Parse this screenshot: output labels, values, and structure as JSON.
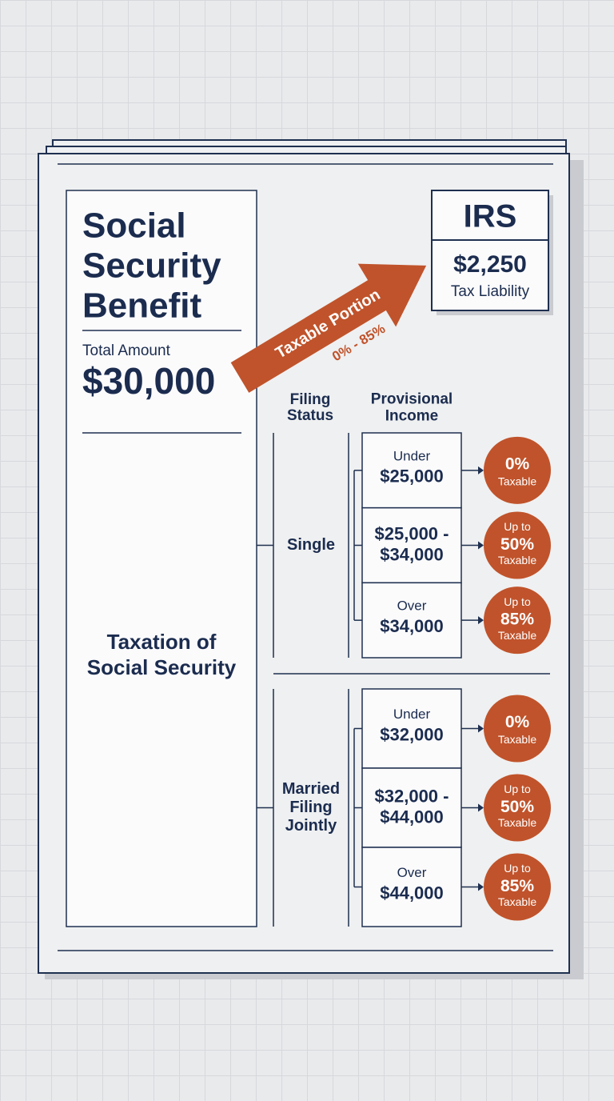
{
  "benefit": {
    "title_lines": [
      "Social",
      "Security",
      "Benefit"
    ],
    "total_label": "Total Amount",
    "total": "$30,000",
    "footer_lines": [
      "Taxation of",
      "Social Security"
    ]
  },
  "irs": {
    "title": "IRS",
    "amount": "$2,250",
    "label": "Tax Liability"
  },
  "arrow": {
    "label": "Taxable Portion",
    "range": "0% - 85%"
  },
  "headers": {
    "filing_status": [
      "Filing",
      "Status"
    ],
    "provisional_income": [
      "Provisional",
      "Income"
    ]
  },
  "groups": [
    {
      "status": [
        "Single"
      ],
      "tiers": [
        {
          "income": {
            "note": "Under",
            "amount": [
              "$25,000"
            ]
          },
          "result": {
            "rate": "0%",
            "label": "Taxable"
          }
        },
        {
          "income": {
            "amount": [
              "$25,000 -",
              "$34,000"
            ]
          },
          "result": {
            "prefix": "Up to",
            "rate": "50%",
            "label": "Taxable"
          }
        },
        {
          "income": {
            "note": "Over",
            "amount": [
              "$34,000"
            ]
          },
          "result": {
            "prefix": "Up to",
            "rate": "85%",
            "label": "Taxable"
          }
        }
      ]
    },
    {
      "status": [
        "Married",
        "Filing",
        "Jointly"
      ],
      "tiers": [
        {
          "income": {
            "note": "Under",
            "amount": [
              "$32,000"
            ]
          },
          "result": {
            "rate": "0%",
            "label": "Taxable"
          }
        },
        {
          "income": {
            "amount": [
              "$32,000 -",
              "$44,000"
            ]
          },
          "result": {
            "prefix": "Up to",
            "rate": "50%",
            "label": "Taxable"
          }
        },
        {
          "income": {
            "note": "Over",
            "amount": [
              "$44,000"
            ]
          },
          "result": {
            "prefix": "Up to",
            "rate": "85%",
            "label": "Taxable"
          }
        }
      ]
    }
  ]
}
